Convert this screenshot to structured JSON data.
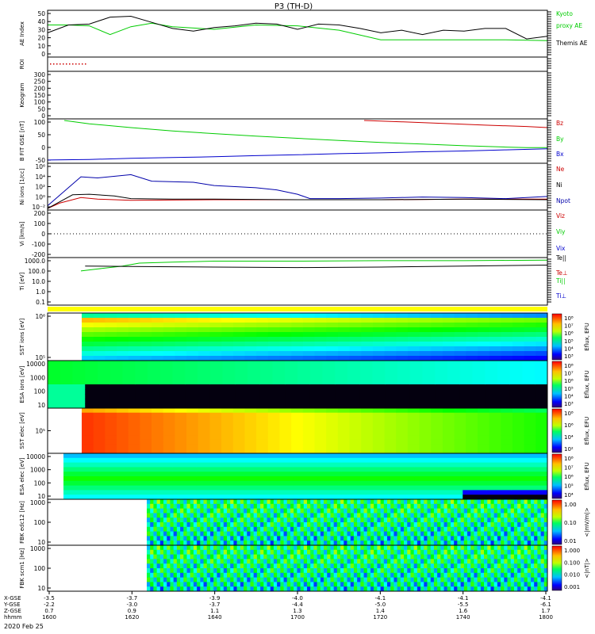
{
  "title": "P3 (TH-D)",
  "footer_date": "2020 Feb 25",
  "colors": {
    "kyoto": "#00cc00",
    "themis": "#000000",
    "bz": "#cc0000",
    "by": "#00cc00",
    "bx": "#0000cc",
    "ne": "#cc0000",
    "ni": "#000000",
    "npot": "#0000aa",
    "te": "#cc0000",
    "ti": "#00cc00",
    "tperp": "#0000cc"
  },
  "chart_data": [
    {
      "type": "line",
      "panel": "ae",
      "ylabel": "AE Index",
      "yticks": [
        "50",
        "40",
        "30",
        "20",
        "10",
        "0"
      ],
      "ylim": [
        0,
        50
      ],
      "legend": [
        "Kyoto",
        "proxy AE",
        "Themis AE"
      ],
      "series": [
        {
          "name": "Kyoto proxy AE",
          "color": "kyoto",
          "x": [
            0,
            5,
            10,
            15,
            20,
            25,
            30,
            40,
            50,
            60,
            70,
            80,
            90,
            100,
            110,
            120
          ],
          "y": [
            35,
            35,
            34,
            24,
            33,
            37,
            33,
            30,
            35,
            34,
            29,
            18,
            18,
            18,
            18,
            17
          ]
        },
        {
          "name": "Themis AE",
          "color": "themis",
          "x": [
            0,
            5,
            10,
            15,
            20,
            25,
            30,
            35,
            40,
            45,
            50,
            55,
            60,
            65,
            70,
            75,
            80,
            85,
            90,
            95,
            100,
            105,
            110,
            115,
            120
          ],
          "y": [
            26,
            35,
            36,
            44,
            45,
            38,
            31,
            28,
            32,
            34,
            37,
            36,
            30,
            36,
            35,
            31,
            26,
            29,
            24,
            29,
            28,
            31,
            31,
            19,
            22
          ]
        }
      ]
    },
    {
      "type": "line",
      "panel": "roi",
      "ylabel": "ROI"
    },
    {
      "type": "line",
      "panel": "keogram",
      "ylabel": "Keogram",
      "yticks": [
        "300",
        "250",
        "200",
        "150",
        "100",
        "50",
        "0"
      ],
      "ylim": [
        0,
        300
      ]
    },
    {
      "type": "line",
      "panel": "bfield",
      "ylabel": "B FIT GSE [nT]",
      "yticks": [
        "100",
        "50",
        "0",
        "-50"
      ],
      "ylim": [
        -50,
        100
      ],
      "legend": [
        "Bz",
        "By",
        "Bx"
      ],
      "series": [
        {
          "name": "Bz",
          "color": "bz",
          "x": [
            76,
            85,
            95,
            105,
            115,
            120
          ],
          "y": [
            100,
            95,
            89,
            83,
            78,
            74
          ]
        },
        {
          "name": "By",
          "color": "by",
          "x": [
            4,
            10,
            20,
            30,
            40,
            50,
            60,
            70,
            80,
            90,
            100,
            110,
            115,
            120
          ],
          "y": [
            100,
            88,
            74,
            62,
            52,
            43,
            35,
            27,
            20,
            14,
            8,
            3,
            1,
            1
          ]
        },
        {
          "name": "Bx",
          "color": "bx",
          "x": [
            0,
            10,
            20,
            30,
            40,
            50,
            60,
            70,
            80,
            90,
            100,
            110,
            120
          ],
          "y": [
            -44,
            -42,
            -38,
            -35,
            -32,
            -28,
            -25,
            -21,
            -18,
            -14,
            -11,
            -7,
            -3
          ]
        }
      ]
    },
    {
      "type": "line",
      "panel": "density",
      "ylabel": "Ni ions [1/cc]",
      "yticks": [
        "10⁶",
        "10⁴",
        "10²",
        "10⁰",
        "10⁻²"
      ],
      "ylim": [
        -2,
        6
      ],
      "log": true,
      "legend": [
        "Ne",
        "Ni",
        "Npot"
      ],
      "series": [
        {
          "name": "Ne",
          "color": "ne",
          "x": [
            0,
            3,
            8,
            12,
            20,
            40,
            60,
            80,
            100,
            120
          ],
          "y": [
            -2,
            -1,
            0,
            -0.3,
            -0.5,
            -0.4,
            -0.4,
            -0.4,
            -0.3,
            -0.3
          ]
        },
        {
          "name": "Ni",
          "color": "ni",
          "x": [
            0,
            6,
            10,
            16,
            20,
            30,
            40,
            60,
            80,
            100,
            120
          ],
          "y": [
            -2,
            0.5,
            0.6,
            0.3,
            -0.2,
            -0.3,
            -0.3,
            -0.4,
            -0.4,
            -0.3,
            -0.4
          ]
        },
        {
          "name": "Npot",
          "color": "npot",
          "x": [
            0,
            8,
            12,
            20,
            25,
            35,
            40,
            50,
            55,
            60,
            63,
            70,
            80,
            90,
            100,
            110,
            120
          ],
          "y": [
            -1.5,
            3.8,
            3.6,
            4.2,
            3.0,
            2.8,
            2.2,
            1.8,
            1.4,
            0.6,
            -0.2,
            -0.2,
            -0.1,
            0.1,
            0.0,
            -0.2,
            0.2
          ]
        }
      ]
    },
    {
      "type": "line",
      "panel": "velocity",
      "ylabel": "Vi [km/s]",
      "yticks": [
        "200",
        "100",
        "0",
        "-100",
        "-200"
      ],
      "ylim": [
        -250,
        250
      ],
      "legend": [
        "Viz",
        "Viy",
        "Vix"
      ]
    },
    {
      "type": "line",
      "panel": "temperature",
      "ylabel": "Ti [eV]",
      "yticks": [
        "1000.0",
        "100.0",
        "10.0",
        "1.0",
        "0.1"
      ],
      "ylim": [
        -1,
        3.5
      ],
      "log": true,
      "legend": [
        "Te||",
        "Te⊥",
        "Ti||",
        "Ti⊥"
      ],
      "series": [
        {
          "name": "Ti||",
          "color": "ti",
          "x": [
            8,
            12,
            18,
            22,
            30,
            40,
            60,
            80,
            100,
            120
          ],
          "y": [
            2.3,
            2.5,
            2.8,
            3.1,
            3.2,
            3.3,
            3.3,
            3.35,
            3.35,
            3.4
          ]
        },
        {
          "name": "Te||",
          "color": "ni",
          "x": [
            9,
            20,
            40,
            60,
            80,
            100,
            120
          ],
          "y": [
            2.8,
            2.75,
            2.7,
            2.65,
            2.7,
            2.8,
            2.9
          ]
        }
      ]
    },
    {
      "type": "heatmap",
      "panel": "sst_ion",
      "ylabel": "SST ions [eV]",
      "yticks": [
        "10⁶",
        "10⁵"
      ],
      "cbar_ticks": [
        "10⁸",
        "10⁷",
        "10⁶",
        "10⁵",
        "10⁴",
        "10³"
      ],
      "cbar_label": "Eflux, EFU"
    },
    {
      "type": "heatmap",
      "panel": "esa_ion",
      "ylabel": "ESA ions [eV]",
      "yticks": [
        "10000",
        "1000",
        "100",
        "10"
      ],
      "cbar_ticks": [
        "10⁸",
        "10⁷",
        "10⁶",
        "10⁵",
        "10⁴",
        "10³"
      ],
      "cbar_label": "Eflux, EFU"
    },
    {
      "type": "heatmap",
      "panel": "sst_elec",
      "ylabel": "SST elec [eV]",
      "yticks": [
        "10⁵"
      ],
      "cbar_ticks": [
        "10⁸",
        "10⁶",
        "10⁴",
        "10²"
      ],
      "cbar_label": "Eflux, EFU"
    },
    {
      "type": "heatmap",
      "panel": "esa_elec",
      "ylabel": "ESA elec [eV]",
      "yticks": [
        "10000",
        "1000",
        "100",
        "10"
      ],
      "cbar_ticks": [
        "10⁸",
        "10⁷",
        "10⁶",
        "10⁵",
        "10⁴"
      ],
      "cbar_label": "Eflux, EFU"
    },
    {
      "type": "heatmap",
      "panel": "fbk_edc",
      "ylabel": "FBK edc12 [Hz]",
      "yticks": [
        "1000",
        "100",
        "10"
      ],
      "cbar_ticks": [
        "1.00",
        "0.10",
        "0.01"
      ],
      "cbar_label": "<|mV/m|>"
    },
    {
      "type": "heatmap",
      "panel": "fbk_scm",
      "ylabel": "FBK scm1 [Hz]",
      "yticks": [
        "1000",
        "100",
        "10"
      ],
      "cbar_ticks": [
        "1.000",
        "0.100",
        "0.010",
        "0.001"
      ],
      "cbar_label": "<|nT|>"
    },
    {
      "type": "table",
      "panel": "ephemeris",
      "row_labels": [
        "X-GSE",
        "Y-GSE",
        "Z-GSE",
        "hhmm"
      ],
      "columns": [
        [
          "-3.5",
          "-2.2",
          "0.7",
          "1600"
        ],
        [
          "-3.7",
          "-3.0",
          "0.9",
          "1620"
        ],
        [
          "-3.9",
          "-3.7",
          "1.1",
          "1640"
        ],
        [
          "-4.0",
          "-4.4",
          "1.3",
          "1700"
        ],
        [
          "-4.1",
          "-5.0",
          "1.4",
          "1720"
        ],
        [
          "-4.1",
          "-5.5",
          "1.6",
          "1740"
        ],
        [
          "-4.1",
          "-6.1",
          "1.7",
          "1800"
        ]
      ]
    }
  ]
}
